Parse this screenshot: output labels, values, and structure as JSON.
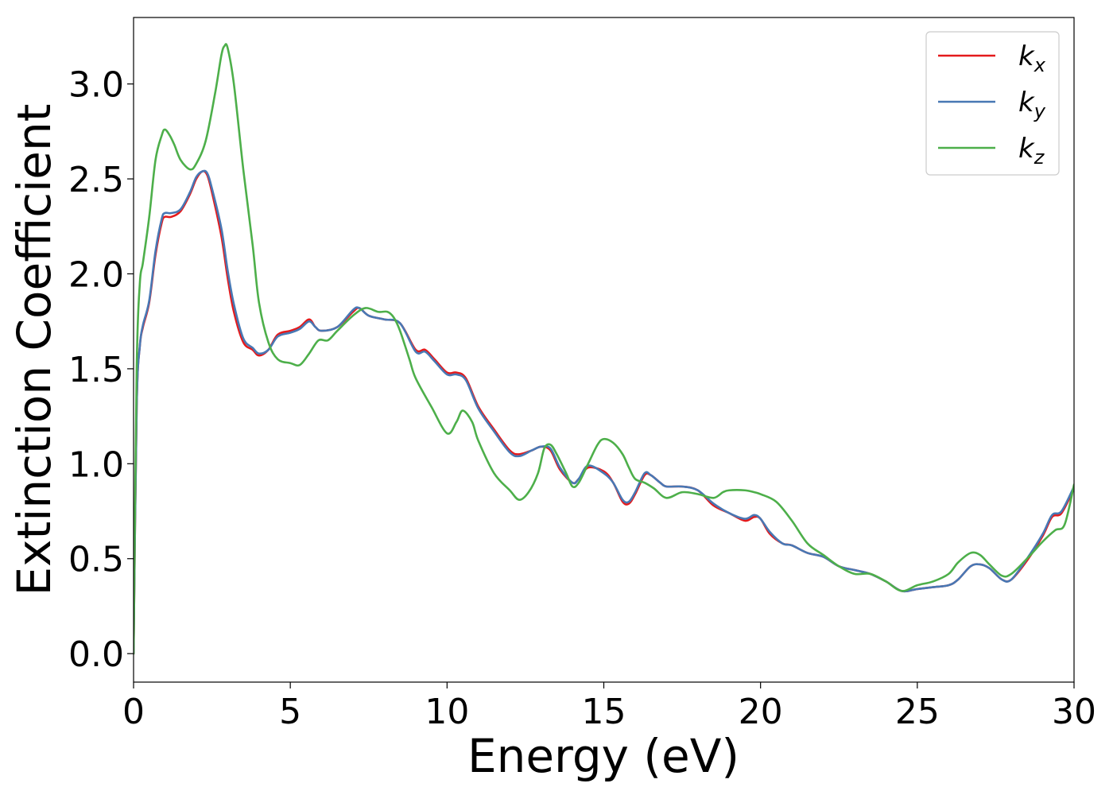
{
  "chart_data": {
    "type": "line",
    "xlabel": "Energy (eV)",
    "ylabel": "Extinction Coefficient",
    "xlim": [
      0,
      30
    ],
    "ylim": [
      -0.15,
      3.35
    ],
    "xticks": [
      0,
      5,
      10,
      15,
      20,
      25,
      30
    ],
    "xtick_labels": [
      "0",
      "5",
      "10",
      "15",
      "20",
      "25",
      "30"
    ],
    "yticks": [
      0.0,
      0.5,
      1.0,
      1.5,
      2.0,
      2.5,
      3.0
    ],
    "ytick_labels": [
      "0.0",
      "0.5",
      "1.0",
      "1.5",
      "2.0",
      "2.5",
      "3.0"
    ],
    "grid": false,
    "legend_position": "top-right",
    "series": [
      {
        "name": "kx",
        "label_base": "k",
        "label_sub": "x",
        "color": "#e41a1c",
        "x": [
          0,
          0.1,
          0.2,
          0.3,
          0.5,
          0.7,
          0.9,
          1.0,
          1.2,
          1.5,
          1.8,
          2.0,
          2.2,
          2.35,
          2.5,
          2.8,
          3.0,
          3.2,
          3.5,
          3.8,
          4.0,
          4.3,
          4.6,
          5.0,
          5.3,
          5.6,
          5.8,
          6.0,
          6.5,
          7.0,
          7.2,
          7.5,
          8.0,
          8.5,
          9.0,
          9.3,
          9.6,
          10.0,
          10.3,
          10.6,
          11.0,
          11.5,
          12.0,
          12.3,
          12.7,
          13.0,
          13.3,
          13.6,
          14.0,
          14.2,
          14.5,
          15.0,
          15.3,
          15.6,
          15.8,
          16.0,
          16.3,
          16.5,
          16.8,
          17.0,
          17.5,
          18.0,
          18.5,
          19.0,
          19.5,
          19.8,
          20.0,
          20.3,
          20.7,
          21.0,
          21.5,
          22.0,
          22.5,
          23.0,
          23.5,
          24.0,
          24.5,
          25.0,
          25.5,
          26.0,
          26.3,
          26.7,
          27.0,
          27.3,
          27.7,
          28.0,
          28.5,
          29.0,
          29.3,
          29.6,
          30.0
        ],
        "y": [
          0.0,
          1.3,
          1.62,
          1.72,
          1.85,
          2.1,
          2.27,
          2.3,
          2.3,
          2.33,
          2.42,
          2.5,
          2.54,
          2.52,
          2.43,
          2.2,
          1.98,
          1.8,
          1.64,
          1.6,
          1.57,
          1.6,
          1.68,
          1.7,
          1.72,
          1.76,
          1.72,
          1.7,
          1.72,
          1.8,
          1.82,
          1.78,
          1.76,
          1.74,
          1.6,
          1.6,
          1.55,
          1.48,
          1.48,
          1.45,
          1.3,
          1.18,
          1.07,
          1.05,
          1.07,
          1.09,
          1.07,
          0.97,
          0.9,
          0.92,
          0.98,
          0.96,
          0.9,
          0.8,
          0.79,
          0.84,
          0.94,
          0.94,
          0.9,
          0.88,
          0.88,
          0.86,
          0.78,
          0.74,
          0.7,
          0.72,
          0.71,
          0.63,
          0.58,
          0.57,
          0.53,
          0.51,
          0.46,
          0.44,
          0.42,
          0.38,
          0.33,
          0.34,
          0.35,
          0.36,
          0.39,
          0.46,
          0.47,
          0.45,
          0.39,
          0.39,
          0.49,
          0.62,
          0.72,
          0.74,
          0.87
        ]
      },
      {
        "name": "ky",
        "label_base": "k",
        "label_sub": "y",
        "color": "#4878b4",
        "x": [
          0,
          0.1,
          0.2,
          0.3,
          0.5,
          0.7,
          0.9,
          1.0,
          1.2,
          1.5,
          1.8,
          2.0,
          2.2,
          2.35,
          2.5,
          2.8,
          3.0,
          3.2,
          3.5,
          3.8,
          4.0,
          4.3,
          4.6,
          5.0,
          5.3,
          5.6,
          5.8,
          6.0,
          6.5,
          7.0,
          7.2,
          7.5,
          8.0,
          8.5,
          9.0,
          9.3,
          9.6,
          10.0,
          10.3,
          10.6,
          11.0,
          11.5,
          12.0,
          12.3,
          12.7,
          13.0,
          13.3,
          13.6,
          14.0,
          14.2,
          14.5,
          15.0,
          15.3,
          15.6,
          15.8,
          16.0,
          16.3,
          16.5,
          16.8,
          17.0,
          17.5,
          18.0,
          18.5,
          19.0,
          19.5,
          19.8,
          20.0,
          20.3,
          20.7,
          21.0,
          21.5,
          22.0,
          22.5,
          23.0,
          23.5,
          24.0,
          24.5,
          25.0,
          25.5,
          26.0,
          26.3,
          26.7,
          27.0,
          27.3,
          27.7,
          28.0,
          28.5,
          29.0,
          29.3,
          29.6,
          30.0
        ],
        "y": [
          0.0,
          1.3,
          1.62,
          1.73,
          1.86,
          2.12,
          2.29,
          2.32,
          2.32,
          2.34,
          2.43,
          2.51,
          2.54,
          2.53,
          2.45,
          2.24,
          2.02,
          1.84,
          1.66,
          1.61,
          1.58,
          1.6,
          1.67,
          1.69,
          1.71,
          1.75,
          1.72,
          1.7,
          1.72,
          1.81,
          1.82,
          1.78,
          1.76,
          1.74,
          1.59,
          1.59,
          1.54,
          1.47,
          1.47,
          1.44,
          1.29,
          1.17,
          1.06,
          1.04,
          1.07,
          1.09,
          1.08,
          0.98,
          0.9,
          0.92,
          0.99,
          0.95,
          0.9,
          0.81,
          0.8,
          0.85,
          0.95,
          0.94,
          0.9,
          0.88,
          0.88,
          0.86,
          0.79,
          0.74,
          0.71,
          0.73,
          0.71,
          0.64,
          0.58,
          0.57,
          0.53,
          0.51,
          0.46,
          0.44,
          0.42,
          0.38,
          0.33,
          0.34,
          0.35,
          0.36,
          0.39,
          0.46,
          0.47,
          0.45,
          0.39,
          0.39,
          0.5,
          0.63,
          0.73,
          0.75,
          0.88
        ]
      },
      {
        "name": "kz",
        "label_base": "k",
        "label_sub": "z",
        "color": "#4daf4a",
        "x": [
          0,
          0.1,
          0.2,
          0.3,
          0.5,
          0.7,
          0.9,
          1.0,
          1.15,
          1.3,
          1.5,
          1.8,
          2.0,
          2.3,
          2.6,
          2.8,
          2.9,
          3.0,
          3.2,
          3.5,
          3.8,
          4.0,
          4.3,
          4.6,
          5.0,
          5.3,
          5.6,
          5.9,
          6.2,
          6.5,
          7.0,
          7.4,
          7.8,
          8.1,
          8.3,
          8.5,
          8.8,
          9.0,
          9.5,
          10.0,
          10.3,
          10.5,
          10.8,
          11.0,
          11.5,
          12.0,
          12.3,
          12.6,
          12.9,
          13.1,
          13.3,
          13.5,
          13.8,
          14.0,
          14.2,
          14.5,
          14.8,
          15.0,
          15.3,
          15.6,
          15.8,
          16.0,
          16.3,
          16.6,
          17.0,
          17.5,
          18.0,
          18.5,
          18.8,
          19.0,
          19.5,
          19.8,
          20.0,
          20.5,
          21.0,
          21.5,
          22.0,
          22.5,
          23.0,
          23.5,
          24.0,
          24.5,
          25.0,
          25.5,
          26.0,
          26.3,
          26.7,
          27.0,
          27.3,
          27.7,
          28.0,
          28.5,
          29.0,
          29.4,
          29.7,
          30.0
        ],
        "y": [
          0.0,
          1.5,
          1.95,
          2.06,
          2.3,
          2.6,
          2.73,
          2.76,
          2.73,
          2.68,
          2.6,
          2.55,
          2.58,
          2.7,
          2.95,
          3.15,
          3.2,
          3.19,
          3.0,
          2.55,
          2.15,
          1.85,
          1.64,
          1.55,
          1.53,
          1.52,
          1.58,
          1.65,
          1.65,
          1.7,
          1.78,
          1.82,
          1.8,
          1.8,
          1.77,
          1.7,
          1.55,
          1.45,
          1.3,
          1.16,
          1.22,
          1.28,
          1.22,
          1.12,
          0.95,
          0.86,
          0.81,
          0.85,
          0.95,
          1.08,
          1.1,
          1.05,
          0.95,
          0.88,
          0.9,
          1.0,
          1.1,
          1.13,
          1.11,
          1.05,
          0.98,
          0.92,
          0.9,
          0.87,
          0.82,
          0.85,
          0.84,
          0.82,
          0.85,
          0.86,
          0.86,
          0.85,
          0.84,
          0.8,
          0.7,
          0.58,
          0.52,
          0.46,
          0.42,
          0.42,
          0.38,
          0.33,
          0.36,
          0.38,
          0.42,
          0.48,
          0.53,
          0.52,
          0.47,
          0.41,
          0.42,
          0.5,
          0.59,
          0.65,
          0.68,
          0.89
        ]
      }
    ]
  }
}
